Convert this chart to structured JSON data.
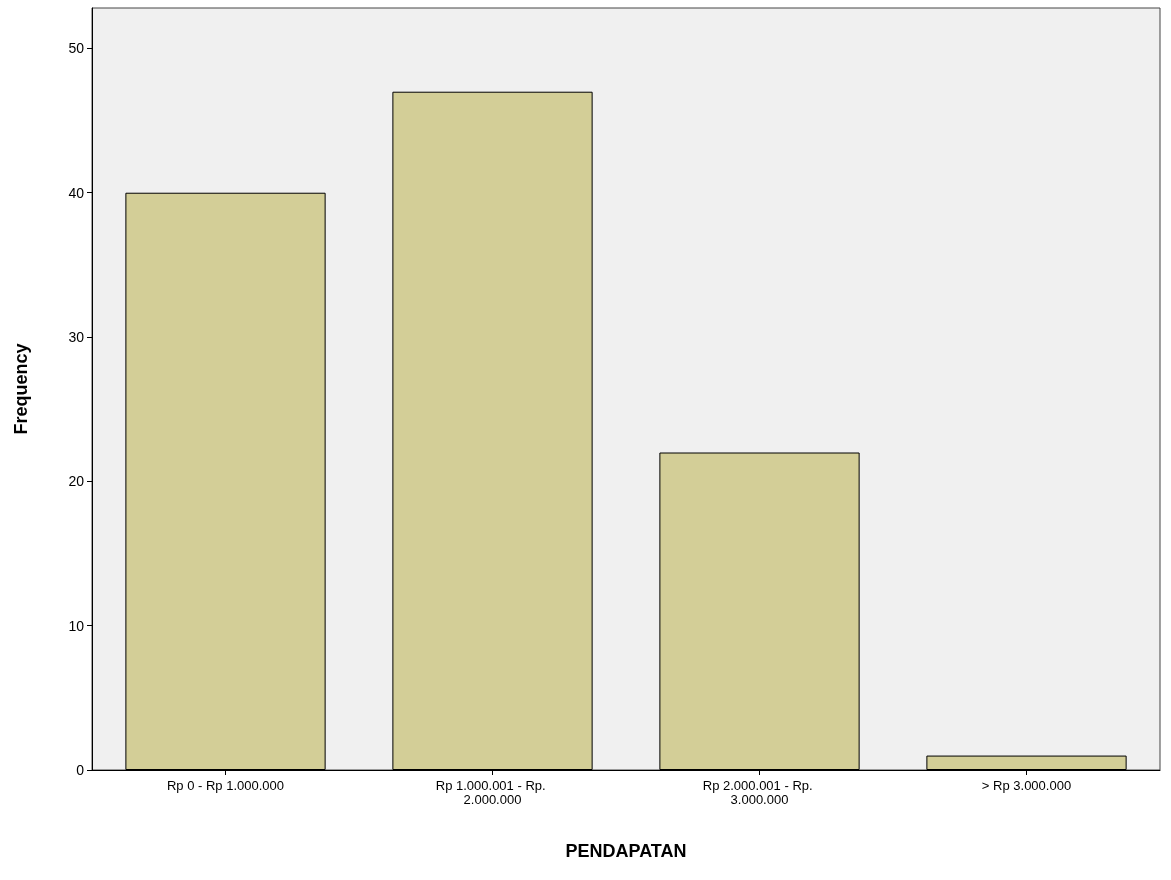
{
  "chart_data": {
    "type": "bar",
    "xlabel": "PENDAPATAN",
    "ylabel": "Frequency",
    "categories": [
      "Rp 0 - Rp 1.000.000",
      "Rp 1.000.001 - Rp. 2.000.000",
      "Rp 2.000.001 - Rp. 3.000.000",
      "> Rp 3.000.000"
    ],
    "values": [
      40,
      47,
      22,
      1
    ],
    "color": "#d3ce97",
    "ylim": [
      0,
      52.8
    ],
    "yticks": [
      0,
      10,
      20,
      30,
      40,
      50
    ],
    "grid": false
  }
}
